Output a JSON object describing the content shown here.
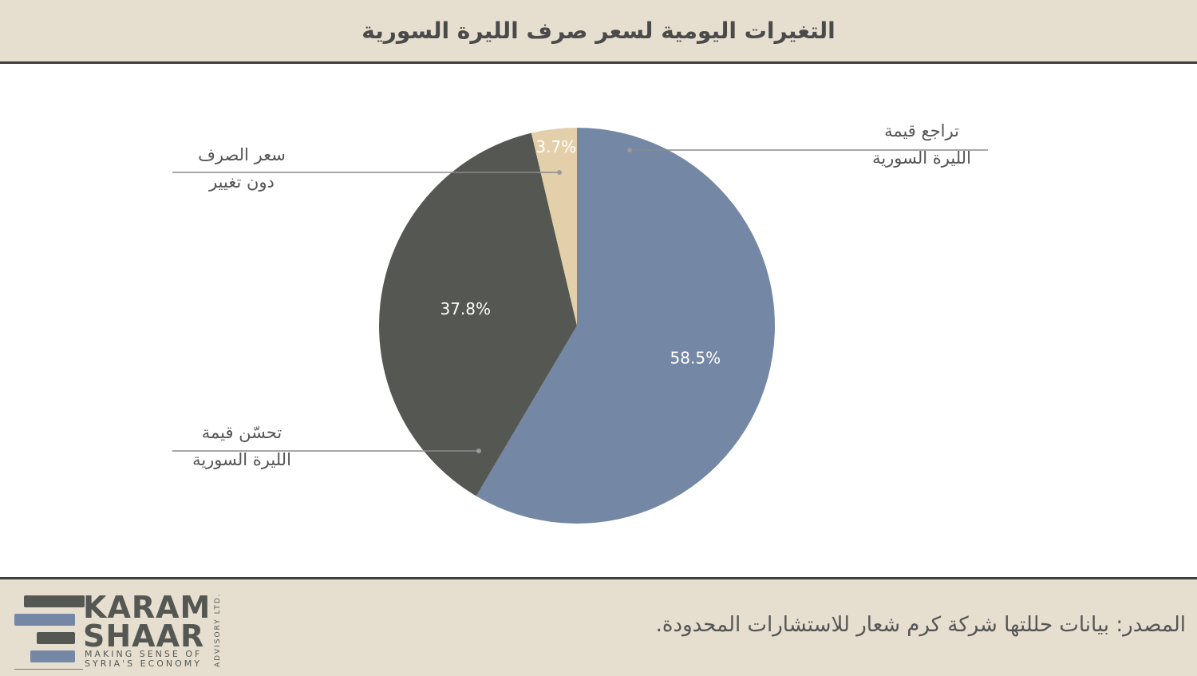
{
  "title": "التغيرات اليومية لسعر صرف الليرة السورية",
  "source": "المصدر: بيانات حللتها شركة كرم شعار للاستشارات المحدودة.",
  "logo": {
    "line1": "KARAM",
    "line2": "SHAAR",
    "tag1": "MAKING SENSE OF",
    "tag2": "SYRIA'S ECONOMY",
    "vertical": "ADVISORY LTD."
  },
  "chart_data": {
    "type": "pie",
    "title": "التغيرات اليومية لسعر صرف الليرة السورية",
    "slices": [
      {
        "label_line1": "تراجع قيمة",
        "label_line2": "الليرة السورية",
        "value": 58.5,
        "display": "58.5%",
        "color": "#7487a4",
        "text_color": "#ffffff"
      },
      {
        "label_line1": "تحسّن قيمة",
        "label_line2": "الليرة السورية",
        "value": 37.8,
        "display": "37.8%",
        "color": "#555753",
        "text_color": "#ffffff"
      },
      {
        "label_line1": "سعر الصرف",
        "label_line2": "دون تغيير",
        "value": 3.7,
        "display": "3.7%",
        "color": "#e3cfa9",
        "text_color": "#ffffff"
      }
    ],
    "start": "top",
    "direction": "clockwise",
    "legend": "none"
  }
}
